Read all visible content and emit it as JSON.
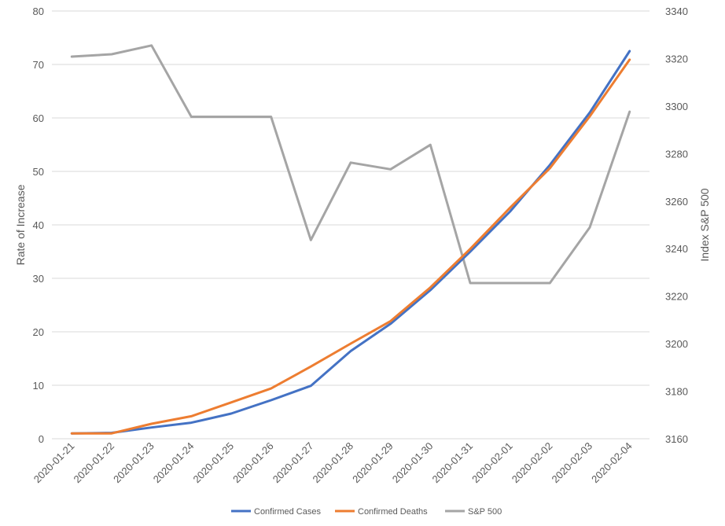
{
  "chart_data": {
    "type": "line",
    "categories": [
      "2020-01-21",
      "2020-01-22",
      "2020-01-23",
      "2020-01-24",
      "2020-01-25",
      "2020-01-26",
      "2020-01-27",
      "2020-01-28",
      "2020-01-29",
      "2020-01-30",
      "2020-01-31",
      "2020-02-01",
      "2020-02-02",
      "2020-02-03",
      "2020-02-04"
    ],
    "series": [
      {
        "name": "Confirmed Cases",
        "axis": "left",
        "color": "#4472c4",
        "values": [
          1,
          1.1,
          2.1,
          3.0,
          4.7,
          7.2,
          9.9,
          16.4,
          21.5,
          27.8,
          35.0,
          42.5,
          51.2,
          61.0,
          72.5
        ]
      },
      {
        "name": "Confirmed Deaths",
        "axis": "left",
        "color": "#ed7d31",
        "values": [
          1,
          1.0,
          2.8,
          4.2,
          6.8,
          9.4,
          13.5,
          17.8,
          22.0,
          28.3,
          35.5,
          43.2,
          50.6,
          60.3,
          70.9
        ]
      },
      {
        "name": "S&P 500",
        "axis": "right",
        "color": "#a5a5a5",
        "values": [
          3320.8,
          3321.8,
          3325.5,
          3295.5,
          3295.5,
          3295.5,
          3243.6,
          3276.2,
          3273.4,
          3283.7,
          3225.5,
          3225.5,
          3225.5,
          3248.9,
          3297.6
        ]
      }
    ],
    "ylabel": "Rate of Increase",
    "y2label": "Index S&P 500",
    "ylim": [
      0,
      80
    ],
    "yticks": [
      0,
      10,
      20,
      30,
      40,
      50,
      60,
      70,
      80
    ],
    "y2lim": [
      3160,
      3340
    ],
    "y2ticks": [
      3160,
      3180,
      3200,
      3220,
      3240,
      3260,
      3280,
      3300,
      3320,
      3340
    ],
    "grid": true,
    "legend": "bottom"
  }
}
